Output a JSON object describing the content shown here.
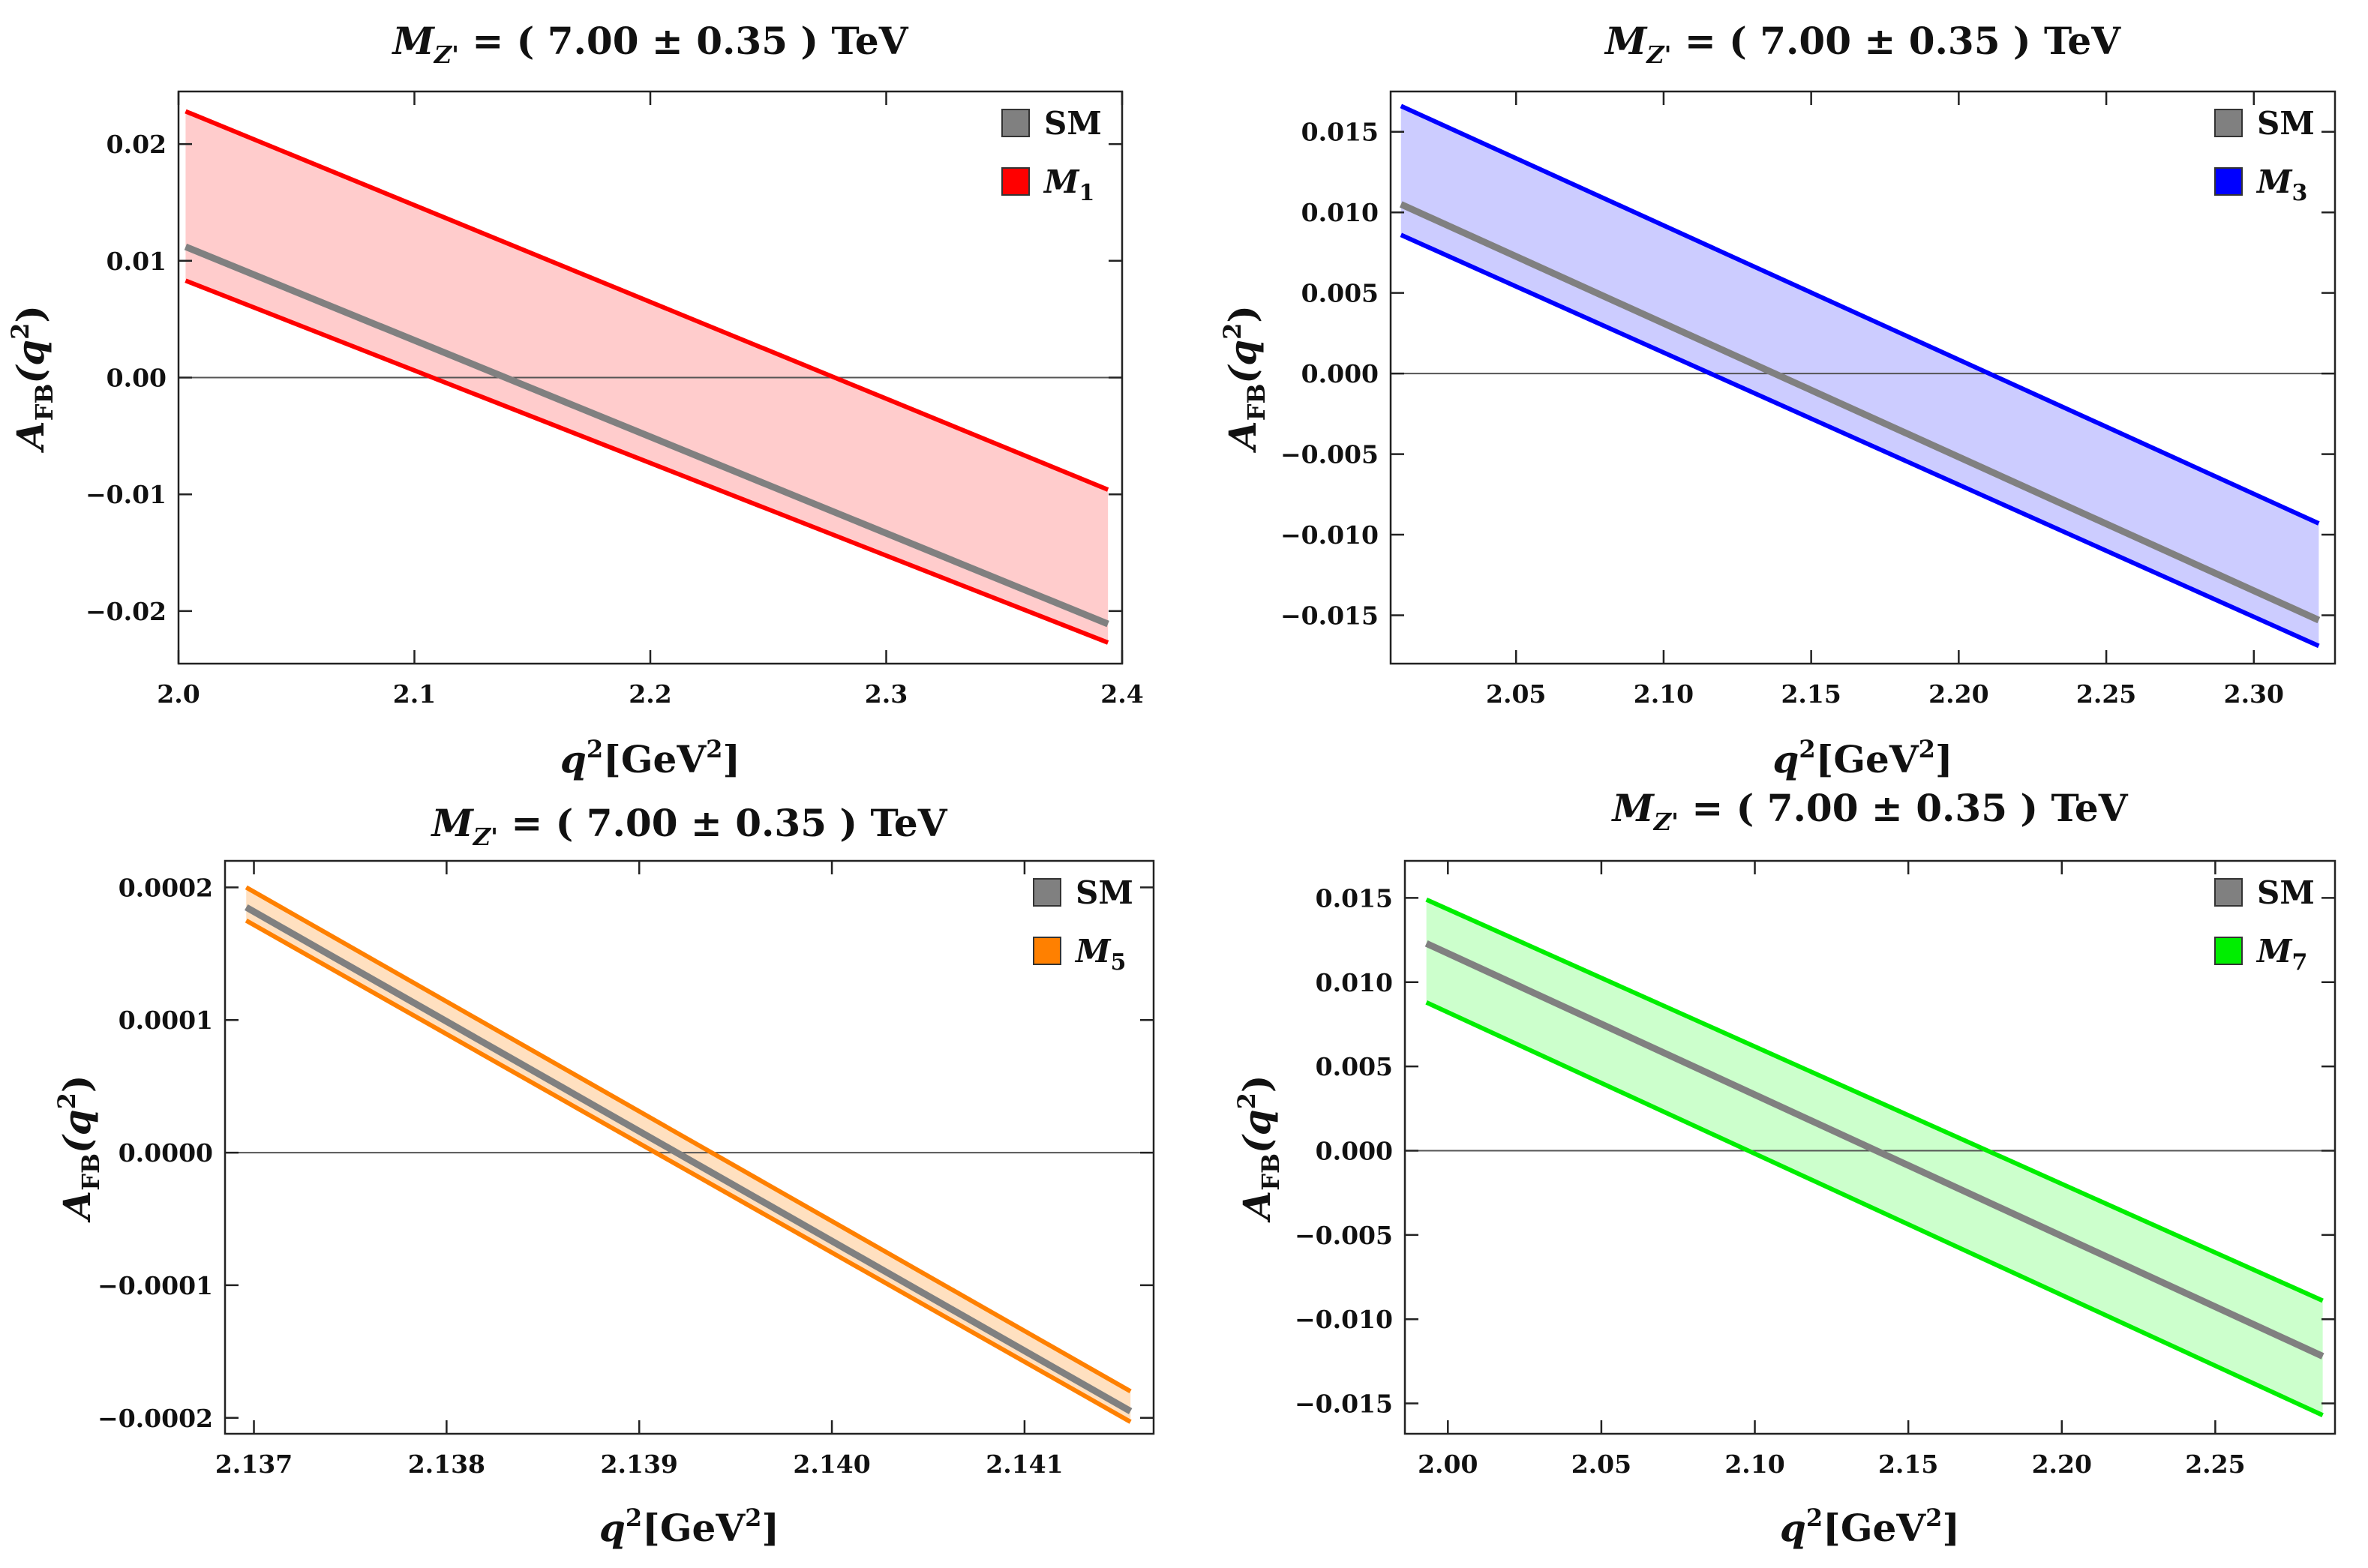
{
  "chart_data": [
    {
      "type": "line",
      "title": {
        "main": "M",
        "sub": "Z'",
        "rest": " = ( 7.00 ± 0.35 ) TeV"
      },
      "xlabel": {
        "main": "q",
        "sup": "2",
        "rest": "[GeV",
        "rest_sup": "2",
        "close": "]"
      },
      "ylabel": {
        "main": "A",
        "sub": "FB",
        "open": "(q",
        "sup": "2",
        "close": ")"
      },
      "xlim": [
        2.0,
        2.4
      ],
      "ylim": [
        -0.0245,
        0.0245
      ],
      "xticks": [
        2.0,
        2.1,
        2.2,
        2.3,
        2.4
      ],
      "xtick_labels": [
        "2.0",
        "2.1",
        "2.2",
        "2.3",
        "2.4"
      ],
      "yticks": [
        -0.02,
        -0.01,
        0.0,
        0.01,
        0.02
      ],
      "ytick_labels": [
        "−0.02",
        "−0.01",
        "0.00",
        "0.01",
        "0.02"
      ],
      "x": [
        2.003,
        2.394
      ],
      "series": [
        {
          "name": "SM",
          "role": "central",
          "color": "#808080",
          "y": [
            0.0112,
            -0.0211
          ]
        },
        {
          "name": "M",
          "name_sub": "1",
          "role": "band",
          "color": "#ff0000",
          "fill": "#ffcccc",
          "upper": [
            0.0228,
            -0.0096
          ],
          "lower": [
            0.0083,
            -0.0227
          ]
        }
      ],
      "legend_position": "top-right"
    },
    {
      "type": "line",
      "title": {
        "main": "M",
        "sub": "Z'",
        "rest": " = ( 7.00 ± 0.35 ) TeV"
      },
      "xlabel": {
        "main": "q",
        "sup": "2",
        "rest": "[GeV",
        "rest_sup": "2",
        "close": "]"
      },
      "ylabel": {
        "main": "A",
        "sub": "FB",
        "open": "(q",
        "sup": "2",
        "close": ")"
      },
      "xlim": [
        2.0075,
        2.3275
      ],
      "ylim": [
        -0.018,
        0.0175
      ],
      "xticks": [
        2.05,
        2.1,
        2.15,
        2.2,
        2.25,
        2.3
      ],
      "xtick_labels": [
        "2.05",
        "2.10",
        "2.15",
        "2.20",
        "2.25",
        "2.30"
      ],
      "yticks": [
        -0.015,
        -0.01,
        -0.005,
        0.0,
        0.005,
        0.01,
        0.015
      ],
      "ytick_labels": [
        "−0.015",
        "−0.010",
        "−0.005",
        "0.000",
        "0.005",
        "0.010",
        "0.015"
      ],
      "x": [
        2.011,
        2.322
      ],
      "series": [
        {
          "name": "SM",
          "role": "central",
          "color": "#808080",
          "y": [
            0.0105,
            -0.0153
          ]
        },
        {
          "name": "M",
          "name_sub": "3",
          "role": "band",
          "color": "#0000ff",
          "fill": "#ccccff",
          "upper": [
            0.0166,
            -0.0093
          ],
          "lower": [
            0.0086,
            -0.0169
          ]
        }
      ],
      "legend_position": "top-right"
    },
    {
      "type": "line",
      "title": {
        "main": "M",
        "sub": "Z'",
        "rest": " = ( 7.00 ± 0.35 ) TeV"
      },
      "xlabel": {
        "main": "q",
        "sup": "2",
        "rest": "[GeV",
        "rest_sup": "2",
        "close": "]"
      },
      "ylabel": {
        "main": "A",
        "sub": "FB",
        "open": "(q",
        "sup": "2",
        "close": ")"
      },
      "xlim": [
        2.13685,
        2.14167
      ],
      "ylim": [
        -0.000212,
        0.00022
      ],
      "xticks": [
        2.137,
        2.138,
        2.139,
        2.14,
        2.141
      ],
      "xtick_labels": [
        "2.137",
        "2.138",
        "2.139",
        "2.140",
        "2.141"
      ],
      "yticks": [
        -0.0002,
        -0.0001,
        0.0,
        0.0001,
        0.0002
      ],
      "ytick_labels": [
        "−0.0002",
        "−0.0001",
        "0.0000",
        "0.0001",
        "0.0002"
      ],
      "x": [
        2.13696,
        2.14155
      ],
      "series": [
        {
          "name": "SM",
          "role": "central",
          "color": "#808080",
          "y": [
            0.000185,
            -0.000195
          ]
        },
        {
          "name": "M",
          "name_sub": "5",
          "role": "band",
          "color": "#ff8000",
          "fill": "#ffe0c0",
          "upper": [
            0.0002,
            -0.00018
          ],
          "lower": [
            0.000175,
            -0.000203
          ]
        }
      ],
      "legend_position": "top-right"
    },
    {
      "type": "line",
      "title": {
        "main": "M",
        "sub": "Z'",
        "rest": " = ( 7.00 ± 0.35 ) TeV"
      },
      "xlabel": {
        "main": "q",
        "sup": "2",
        "rest": "[GeV",
        "rest_sup": "2",
        "close": "]"
      },
      "ylabel": {
        "main": "A",
        "sub": "FB",
        "open": "(q",
        "sup": "2",
        "close": ")"
      },
      "xlim": [
        1.986,
        2.289
      ],
      "ylim": [
        -0.0168,
        0.0172
      ],
      "xticks": [
        2.0,
        2.05,
        2.1,
        2.15,
        2.2,
        2.25
      ],
      "xtick_labels": [
        "2.00",
        "2.05",
        "2.10",
        "2.15",
        "2.20",
        "2.25"
      ],
      "yticks": [
        -0.015,
        -0.01,
        -0.005,
        0.0,
        0.005,
        0.01,
        0.015
      ],
      "ytick_labels": [
        "−0.015",
        "−0.010",
        "−0.005",
        "0.000",
        "0.005",
        "0.010",
        "0.015"
      ],
      "x": [
        1.993,
        2.285
      ],
      "series": [
        {
          "name": "SM",
          "role": "central",
          "color": "#808080",
          "y": [
            0.0123,
            -0.0122
          ]
        },
        {
          "name": "M",
          "name_sub": "7",
          "role": "band",
          "color": "#00ee00",
          "fill": "#ccffcc",
          "upper": [
            0.0149,
            -0.0089
          ],
          "lower": [
            0.0088,
            -0.0157
          ]
        }
      ],
      "legend_position": "top-right"
    }
  ]
}
